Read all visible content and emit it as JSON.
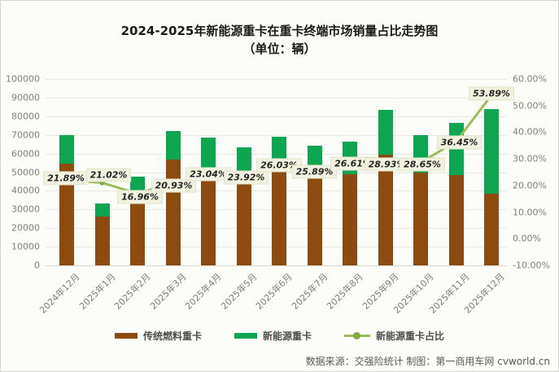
{
  "title": {
    "line1": "2024-2025年新能源重卡在重卡终端市场销量占比走势图",
    "line2": "（单位：辆）"
  },
  "colors": {
    "traditional_bar": "#8E4B10",
    "new_energy_bar": "#0DA650",
    "share_line": "#9ABD5C",
    "share_marker": "#83A844",
    "background": "#FCFCF8"
  },
  "legend": [
    {
      "label": "传统燃料重卡",
      "type": "bar",
      "color": "#8E4B10"
    },
    {
      "label": "新能源重卡",
      "type": "bar",
      "color": "#0DA650"
    },
    {
      "label": "新能源重卡占比",
      "type": "line",
      "color": "#9ABD5C"
    }
  ],
  "footer": {
    "text": "数据来源：交强险统计 制图：第一商用车网 cvworld.cn"
  },
  "chart_data": {
    "type": "bar",
    "subtype": "stacked-bars-with-line",
    "title": "2024-2025年新能源重卡在重卡终端市场销量占比走势图",
    "unit": "辆",
    "categories": [
      "2024年12月",
      "2025年1月",
      "2025年2月",
      "2025年3月",
      "2025年4月",
      "2025年5月",
      "2025年6月",
      "2025年7月",
      "2025年8月",
      "2025年9月",
      "2025年10月",
      "2025年11月",
      "2025年12月"
    ],
    "series": [
      {
        "name": "传统燃料重卡",
        "type": "bar",
        "stack": "total",
        "color": "#8E4B10",
        "values": [
          54600,
          26100,
          39500,
          56900,
          52600,
          48200,
          51000,
          47700,
          48800,
          59300,
          49900,
          48500,
          38600
        ]
      },
      {
        "name": "新能源重卡",
        "type": "bar",
        "stack": "total",
        "color": "#0DA650",
        "values": [
          15300,
          7000,
          8100,
          15100,
          15800,
          15100,
          18000,
          16600,
          17700,
          24100,
          20000,
          27900,
          45100
        ]
      },
      {
        "name": "新能源重卡占比",
        "type": "line",
        "axis": "right",
        "color": "#9ABD5C",
        "values": [
          21.89,
          21.02,
          16.96,
          20.93,
          23.04,
          23.92,
          26.03,
          25.89,
          26.61,
          28.93,
          28.65,
          36.45,
          53.89
        ],
        "labels": [
          "21.89%",
          "21.02%",
          "16.96%",
          "20.93%",
          "23.04%",
          "23.92%",
          "26.03%",
          "25.89%",
          "26.61%",
          "28.93%",
          "28.65%",
          "36.45%",
          "53.89%"
        ]
      }
    ],
    "left_axis": {
      "min": 0,
      "max": 100000,
      "step": 10000,
      "ticks": [
        "0",
        "10000",
        "20000",
        "30000",
        "40000",
        "50000",
        "60000",
        "70000",
        "80000",
        "90000",
        "100000"
      ]
    },
    "right_axis": {
      "min": -10,
      "max": 60,
      "step": 10,
      "ticks": [
        "-10.00%",
        "0.00%",
        "10.00%",
        "20.00%",
        "30.00%",
        "40.00%",
        "50.00%",
        "60.00%"
      ]
    },
    "grid": true,
    "legend_position": "bottom"
  }
}
